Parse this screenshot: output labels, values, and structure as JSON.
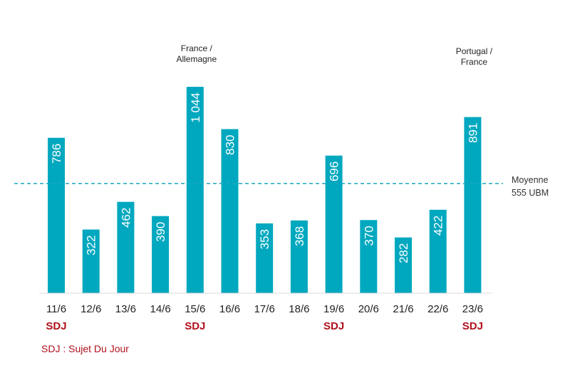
{
  "chart_data": {
    "type": "bar",
    "title": "",
    "xlabel": "",
    "ylabel": "",
    "ylim": [
      0,
      1050
    ],
    "grid": false,
    "categories": [
      "11/6",
      "12/6",
      "13/6",
      "14/6",
      "15/6",
      "16/6",
      "17/6",
      "18/6",
      "19/6",
      "20/6",
      "21/6",
      "22/6",
      "23/6"
    ],
    "values": [
      786,
      322,
      462,
      390,
      1044,
      830,
      353,
      368,
      696,
      370,
      282,
      422,
      891
    ],
    "value_labels": [
      "786",
      "322",
      "462",
      "390",
      "1 044",
      "830",
      "353",
      "368",
      "696",
      "370",
      "282",
      "422",
      "891"
    ],
    "sdj_flags": [
      true,
      false,
      false,
      false,
      true,
      false,
      false,
      false,
      true,
      false,
      false,
      false,
      true
    ],
    "sdj_label": "SDJ",
    "annotations": [
      {
        "category": "15/6",
        "lines": [
          "France /",
          "Allemagne"
        ]
      },
      {
        "category": "23/6",
        "lines": [
          "Portugal /",
          "France"
        ]
      }
    ],
    "mean": {
      "value": 555,
      "lines": [
        "Moyenne",
        "555 UBM"
      ]
    },
    "legend_note": "SDJ : Sujet Du Jour",
    "colors": {
      "bar": "#00a8bf",
      "mean_line": "#1aa7bd",
      "sdj": "#b0101c",
      "axis": "#d9d9d9"
    }
  }
}
